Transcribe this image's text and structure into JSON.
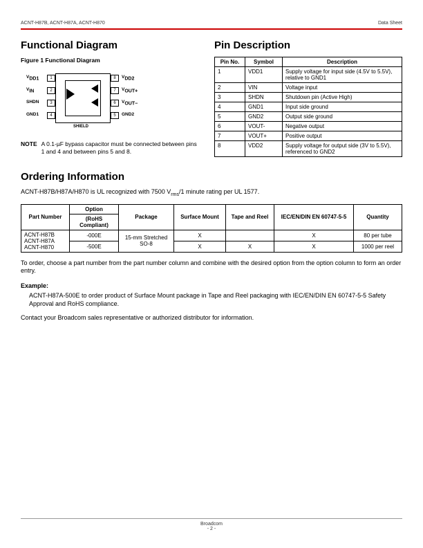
{
  "header": {
    "left": "ACNT-H87B, ACNT-H87A, ACNT-H870",
    "right": "Data Sheet"
  },
  "sections": {
    "functional": "Functional Diagram",
    "pin": "Pin Description",
    "ordering": "Ordering Information"
  },
  "figure_caption": "Figure 1  Functional Diagram",
  "diagram_labels": {
    "p1": "1",
    "p2": "2",
    "p3": "3",
    "p4": "4",
    "p5": "5",
    "p6": "6",
    "p7": "7",
    "p8": "8",
    "vdd1": "V",
    "vdd1_sub": "DD1",
    "vin": "V",
    "vin_sub": "IN",
    "shdn": "SHDN",
    "gnd1": "GND1",
    "vdd2": "V",
    "vdd2_sub": "DD2",
    "voutp": "V",
    "voutp_sub": "OUT+",
    "voutn": "V",
    "voutn_sub": "OUT−",
    "gnd2": "GND2",
    "shield": "SHIELD"
  },
  "note": {
    "label": "NOTE",
    "text": "A 0.1-µF bypass capacitor must be connected between pins 1 and 4 and between pins 5 and 8."
  },
  "pin_table": {
    "headers": [
      "Pin No.",
      "Symbol",
      "Description"
    ],
    "rows": [
      [
        "1",
        "VDD1",
        "Supply voltage for input side (4.5V to 5.5V), relative to GND1"
      ],
      [
        "2",
        "VIN",
        "Voltage input"
      ],
      [
        "3",
        "SHDN",
        "Shutdown pin (Active High)"
      ],
      [
        "4",
        "GND1",
        "Input side ground"
      ],
      [
        "5",
        "GND2",
        "Output side ground"
      ],
      [
        "6",
        "VOUT-",
        "Negative output"
      ],
      [
        "7",
        "VOUT+",
        "Positive output"
      ],
      [
        "8",
        "VDD2",
        "Supply voltage for output side (3V to 5.5V), referenced to GND2"
      ]
    ]
  },
  "ordering_intro_a": "ACNT-H87B/H87A/H870 is UL recognized with 7500 V",
  "ordering_intro_b": "/1 minute rating per UL 1577.",
  "ordering_intro_sub": "rms",
  "ord_table": {
    "header_top": [
      "Part Number",
      "Option",
      "Package",
      "Surface Mount",
      "Tape and Reel",
      "IEC/EN/DIN EN 60747-5-5",
      "Quantity"
    ],
    "rohs": "(RoHS Compliant)",
    "part_numbers": [
      "ACNT-H87B",
      "ACNT-H87A",
      "ACNT-H870"
    ],
    "package": "15-mm Stretched SO-8",
    "rows": [
      {
        "option": "-000E",
        "sm": "X",
        "tr": "",
        "iec": "X",
        "qty": "80 per tube"
      },
      {
        "option": "-500E",
        "sm": "X",
        "tr": "X",
        "iec": "X",
        "qty": "1000 per reel"
      }
    ]
  },
  "order_text": "To order, choose a part number from the part number column and combine with the desired option from the option column to form an order entry.",
  "example_label": "Example:",
  "example_text": "ACNT-H87A-500E to order product of Surface Mount package in Tape and Reel packaging with IEC/EN/DIN EN 60747-5-5 Safety Approval and RoHS compliance.",
  "contact_text": "Contact your Broadcom sales representative or authorized distributor for information.",
  "footer": {
    "company": "Broadcom",
    "page": "- 2 -"
  }
}
